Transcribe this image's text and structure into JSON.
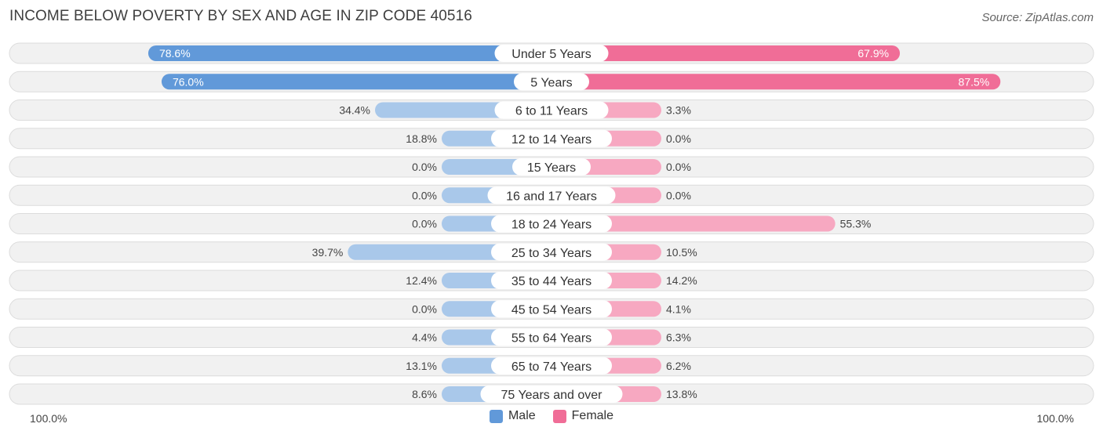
{
  "header": {
    "title": "INCOME BELOW POVERTY BY SEX AND AGE IN ZIP CODE 40516",
    "source": "Source: ZipAtlas.com"
  },
  "colors": {
    "male_strong": "#6199d9",
    "male_light": "#a9c8ea",
    "female_strong": "#f06d97",
    "female_light": "#f7a8c1",
    "row_bg": "#f1f1f1",
    "row_border": "#dcdcdc"
  },
  "axis": {
    "left_label": "100.0%",
    "right_label": "100.0%"
  },
  "legend": {
    "male": "Male",
    "female": "Female"
  },
  "chart_data": {
    "type": "bar",
    "orientation": "horizontal-diverging",
    "title": "INCOME BELOW POVERTY BY SEX AND AGE IN ZIP CODE 40516",
    "xlim": [
      -100,
      100
    ],
    "categories": [
      "Under 5 Years",
      "5 Years",
      "6 to 11 Years",
      "12 to 14 Years",
      "15 Years",
      "16 and 17 Years",
      "18 to 24 Years",
      "25 to 34 Years",
      "35 to 44 Years",
      "45 to 54 Years",
      "55 to 64 Years",
      "65 to 74 Years",
      "75 Years and over"
    ],
    "series": [
      {
        "name": "Male",
        "values": [
          78.6,
          76.0,
          34.4,
          18.8,
          0.0,
          0.0,
          0.0,
          39.7,
          12.4,
          0.0,
          4.4,
          13.1,
          8.6
        ],
        "labels": [
          "78.6%",
          "76.0%",
          "34.4%",
          "18.8%",
          "0.0%",
          "0.0%",
          "0.0%",
          "39.7%",
          "12.4%",
          "0.0%",
          "4.4%",
          "13.1%",
          "8.6%"
        ]
      },
      {
        "name": "Female",
        "values": [
          67.9,
          87.5,
          3.3,
          0.0,
          0.0,
          0.0,
          55.3,
          10.5,
          14.2,
          4.1,
          6.3,
          6.2,
          13.8
        ],
        "labels": [
          "67.9%",
          "87.5%",
          "3.3%",
          "0.0%",
          "0.0%",
          "0.0%",
          "55.3%",
          "10.5%",
          "14.2%",
          "4.1%",
          "6.3%",
          "6.2%",
          "13.8%"
        ]
      }
    ],
    "legend_position": "bottom-center",
    "grid": false
  }
}
